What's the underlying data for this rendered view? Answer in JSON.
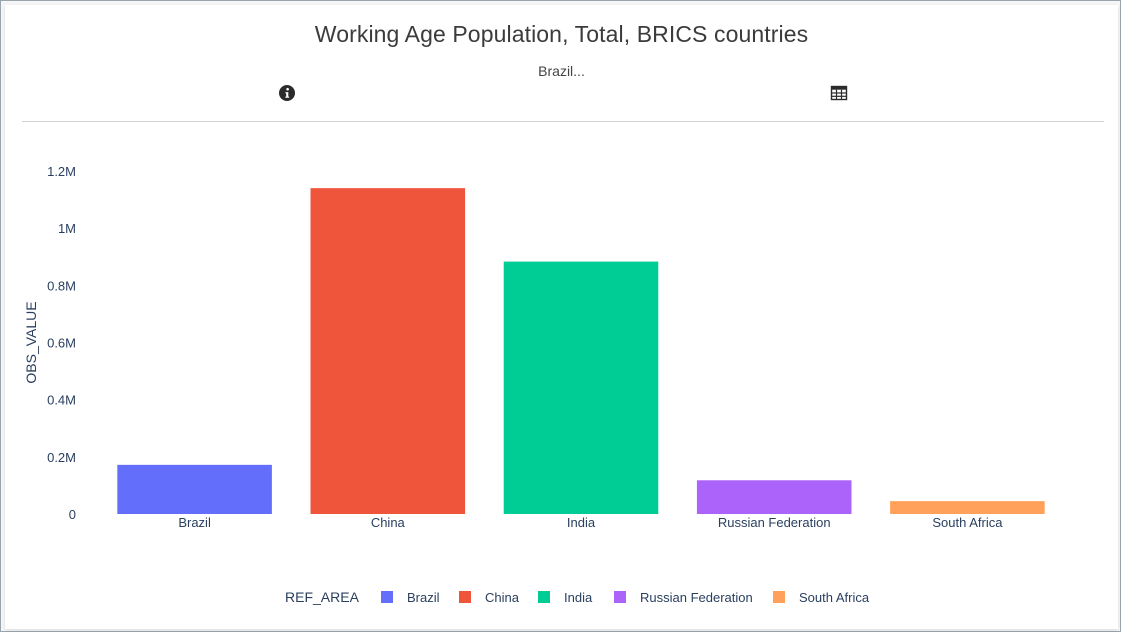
{
  "header": {
    "title": "Working Age Population, Total, BRICS countries",
    "subtitle": "Brazil...",
    "info_icon": "info-icon",
    "table_icon": "table-icon"
  },
  "chart_data": {
    "type": "bar",
    "categories": [
      "Brazil",
      "China",
      "India",
      "Russian Federation",
      "South Africa"
    ],
    "values": [
      172000,
      1140000,
      883000,
      118000,
      45000
    ],
    "colors": [
      "#636efa",
      "#ef553b",
      "#00cc96",
      "#ab63fa",
      "#ffa15a"
    ],
    "ylabel": "OBS_VALUE",
    "xlabel": "",
    "ylim": [
      0,
      1200000
    ],
    "yticks": [
      0,
      200000,
      400000,
      600000,
      800000,
      1000000,
      1200000
    ],
    "ytick_labels": [
      "0",
      "0.2M",
      "0.4M",
      "0.6M",
      "0.8M",
      "1M",
      "1.2M"
    ],
    "grid": false,
    "legend": {
      "title": "REF_AREA",
      "placement": "bottom-center",
      "entries": [
        "Brazil",
        "China",
        "India",
        "Russian Federation",
        "South Africa"
      ]
    }
  }
}
